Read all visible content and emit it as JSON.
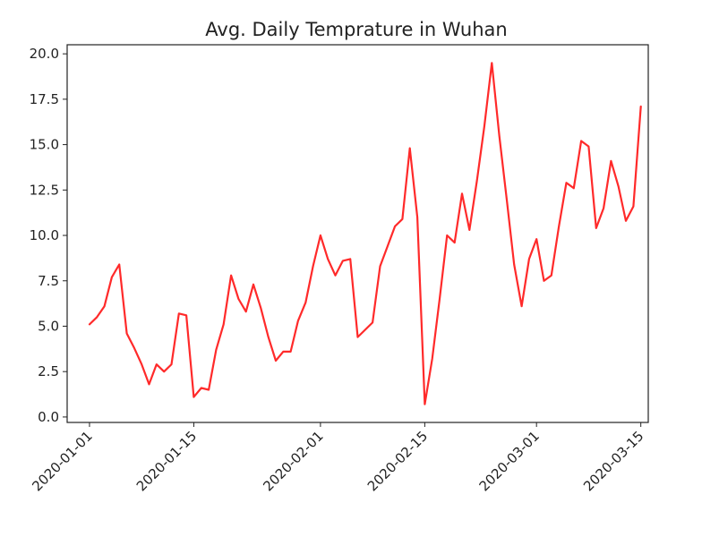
{
  "chart_data": {
    "type": "line",
    "title": "Avg. Daily Temprature in Wuhan",
    "xlabel": "",
    "ylabel": "",
    "x_range": [
      "2019-12-29",
      "2020-03-16"
    ],
    "ylim": [
      -0.3,
      20.5
    ],
    "grid": false,
    "x_ticks": [
      "2020-01-01",
      "2020-01-15",
      "2020-02-01",
      "2020-02-15",
      "2020-03-01",
      "2020-03-15"
    ],
    "y_ticks": [
      "0.0",
      "2.5",
      "5.0",
      "7.5",
      "10.0",
      "12.5",
      "15.0",
      "17.5",
      "20.0"
    ],
    "series": [
      {
        "color": "#ff2a2a",
        "x": [
          "2020-01-01",
          "2020-01-02",
          "2020-01-03",
          "2020-01-04",
          "2020-01-05",
          "2020-01-06",
          "2020-01-07",
          "2020-01-08",
          "2020-01-09",
          "2020-01-10",
          "2020-01-11",
          "2020-01-12",
          "2020-01-13",
          "2020-01-14",
          "2020-01-15",
          "2020-01-16",
          "2020-01-17",
          "2020-01-18",
          "2020-01-19",
          "2020-01-20",
          "2020-01-21",
          "2020-01-22",
          "2020-01-23",
          "2020-01-24",
          "2020-01-25",
          "2020-01-26",
          "2020-01-27",
          "2020-01-28",
          "2020-01-29",
          "2020-01-30",
          "2020-01-31",
          "2020-02-01",
          "2020-02-02",
          "2020-02-03",
          "2020-02-04",
          "2020-02-05",
          "2020-02-06",
          "2020-02-07",
          "2020-02-08",
          "2020-02-09",
          "2020-02-10",
          "2020-02-11",
          "2020-02-12",
          "2020-02-13",
          "2020-02-14",
          "2020-02-15",
          "2020-02-16",
          "2020-02-17",
          "2020-02-18",
          "2020-02-19",
          "2020-02-20",
          "2020-02-21",
          "2020-02-22",
          "2020-02-23",
          "2020-02-24",
          "2020-02-25",
          "2020-02-26",
          "2020-02-27",
          "2020-02-28",
          "2020-02-29",
          "2020-03-01",
          "2020-03-02",
          "2020-03-03",
          "2020-03-04",
          "2020-03-05",
          "2020-03-06",
          "2020-03-07",
          "2020-03-08",
          "2020-03-09",
          "2020-03-10",
          "2020-03-11",
          "2020-03-12",
          "2020-03-13",
          "2020-03-14",
          "2020-03-15"
        ],
        "values": [
          5.1,
          5.5,
          6.1,
          7.7,
          8.4,
          4.6,
          3.8,
          2.9,
          1.8,
          2.9,
          2.5,
          2.9,
          5.7,
          5.6,
          1.1,
          1.6,
          1.5,
          3.7,
          5.1,
          7.8,
          6.5,
          5.8,
          7.3,
          6.0,
          4.4,
          3.1,
          3.6,
          3.6,
          5.3,
          6.3,
          8.3,
          10.0,
          8.7,
          7.8,
          8.6,
          8.7,
          4.4,
          4.8,
          5.2,
          8.3,
          9.4,
          10.5,
          10.9,
          14.8,
          11.0,
          0.7,
          3.2,
          6.5,
          10.0,
          9.6,
          12.3,
          10.3,
          13.0,
          16.0,
          19.5,
          15.5,
          12.0,
          8.4,
          6.1,
          8.7,
          9.8,
          7.5,
          7.8,
          10.5,
          12.9,
          12.6,
          15.2,
          14.9,
          10.4,
          11.5,
          14.1,
          12.7,
          10.8,
          11.6,
          17.1
        ]
      }
    ]
  }
}
